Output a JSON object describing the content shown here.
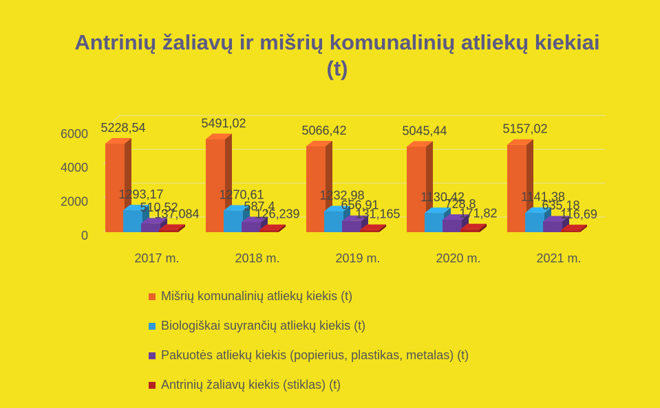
{
  "chart_data": {
    "type": "bar3d",
    "title": "Antrinių žaliavų ir mišrių komunalinių atliekų kiekiai (t)",
    "categories": [
      "2017 m.",
      "2018 m.",
      "2019 m.",
      "2020 m.",
      "2021 m."
    ],
    "series": [
      {
        "name": "Mišrių komunalinių atliekų kiekis (t)",
        "color": "#e8622a",
        "values": [
          5228.54,
          5491.02,
          5066.42,
          5045.44,
          5157.02
        ],
        "value_labels": [
          "5228,54",
          "5491,02",
          "5066,42",
          "5045,44",
          "5157,02"
        ]
      },
      {
        "name": "Biologiškai suyrančių atliekų kiekis (t)",
        "color": "#2e9bd6",
        "values": [
          1293.17,
          1270.61,
          1232.98,
          1130.42,
          1141.38
        ],
        "value_labels": [
          "1293,17",
          "1270,61",
          "1232,98",
          "1130,42",
          "1141,38"
        ]
      },
      {
        "name": "Pakuotės atliekų kiekis (popierius, plastikas, metalas) (t)",
        "color": "#6a3d9a",
        "values": [
          510.52,
          587.4,
          656.91,
          728.8,
          635.18
        ],
        "value_labels": [
          "510,52",
          "587,4",
          "656,91",
          "728,8",
          "635,18"
        ]
      },
      {
        "name": "Antrinių žaliavų kiekis (stiklas) (t)",
        "color": "#b22222",
        "values": [
          137.084,
          126.239,
          131.165,
          171.82,
          116.69
        ],
        "value_labels": [
          "137,084",
          "126,239",
          "131,165",
          "171,82",
          "116,69"
        ]
      }
    ],
    "ylim": [
      0,
      6000
    ],
    "yticks": [
      0,
      2000,
      4000,
      6000
    ],
    "grid": true,
    "legend": "bottom"
  }
}
